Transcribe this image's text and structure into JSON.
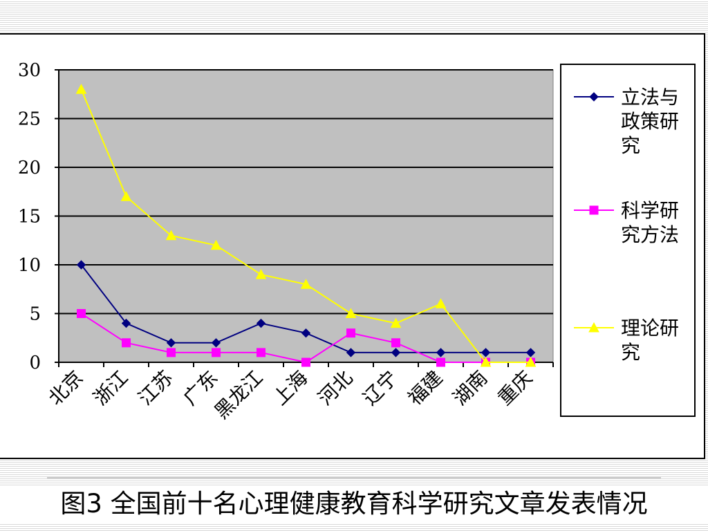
{
  "caption": "图3  全国前十名心理健康教育科学研究文章发表情况",
  "chart_data": {
    "type": "line",
    "categories": [
      "北京",
      "浙江",
      "江苏",
      "广东",
      "黑龙江",
      "上海",
      "河北",
      "辽宁",
      "福建",
      "湖南",
      "重庆"
    ],
    "series": [
      {
        "name": "立法与政策研究",
        "values": [
          10,
          4,
          2,
          2,
          4,
          3,
          1,
          1,
          1,
          1,
          1
        ],
        "color": "#000080",
        "marker": "diamond"
      },
      {
        "name": "科学研究方法",
        "values": [
          5,
          2,
          1,
          1,
          1,
          0,
          3,
          2,
          0,
          0,
          0
        ],
        "color": "#ff00ff",
        "marker": "square"
      },
      {
        "name": "理论研究",
        "values": [
          28,
          17,
          13,
          12,
          9,
          8,
          5,
          4,
          6,
          0,
          0
        ],
        "color": "#ffff00",
        "marker": "triangle"
      }
    ],
    "legend_lines": [
      [
        "立法与",
        "政策研",
        "究"
      ],
      [
        "科学研",
        "究方法"
      ],
      [
        "理论研",
        "究"
      ]
    ],
    "ylim": [
      0,
      30
    ],
    "yticks": [
      0,
      5,
      10,
      15,
      20,
      25,
      30
    ],
    "grid": true,
    "plot_background": "#c0c0c0",
    "legend_position": "right"
  }
}
